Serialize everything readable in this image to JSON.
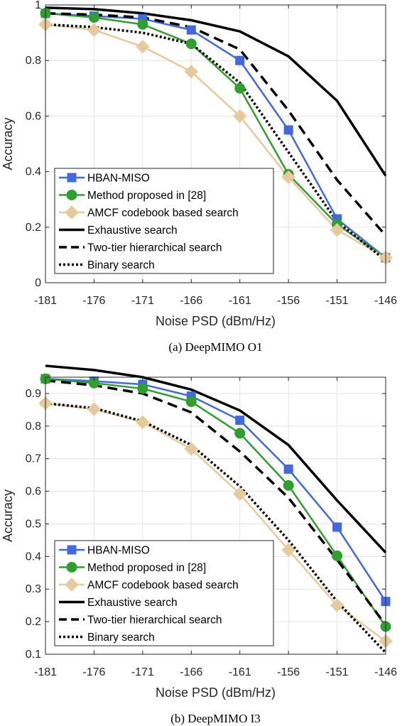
{
  "legend_labels": [
    "HBAN-MISO",
    "Method proposed in [28]",
    "AMCF codebook based search",
    "Exhaustive search",
    "Two-tier hierarchical search",
    "Binary search"
  ],
  "series_styles": [
    {
      "color": "#4169e1",
      "dash": "none",
      "marker": "square"
    },
    {
      "color": "#2ea02e",
      "dash": "none",
      "marker": "circle"
    },
    {
      "color": "#e8c99a",
      "dash": "none",
      "marker": "diamond"
    },
    {
      "color": "#000000",
      "dash": "none",
      "marker": "none"
    },
    {
      "color": "#000000",
      "dash": "dashed",
      "marker": "none"
    },
    {
      "color": "#000000",
      "dash": "dotted",
      "marker": "none"
    }
  ],
  "chart_data": [
    {
      "type": "line",
      "caption": "(a)  DeepMIMO O1",
      "xlabel": "Noise PSD (dBm/Hz)",
      "ylabel": "Accuracy",
      "x": [
        -181,
        -176,
        -171,
        -166,
        -161,
        -156,
        -151,
        -146
      ],
      "xtick_labels": [
        "-181",
        "-176",
        "-171",
        "-166",
        "-161",
        "-156",
        "-151",
        "-146"
      ],
      "ylim": [
        0,
        1
      ],
      "yticks": [
        0,
        0.2,
        0.4,
        0.6,
        0.8,
        1
      ],
      "ytick_labels": [
        "0",
        "0.2",
        "0.4",
        "0.6",
        "0.8",
        "1"
      ],
      "grid": true,
      "legend_position": "lower-left",
      "series": [
        {
          "name": "HBAN-MISO",
          "values": [
            0.97,
            0.96,
            0.95,
            0.91,
            0.8,
            0.55,
            0.23,
            0.09
          ]
        },
        {
          "name": "Method proposed in [28]",
          "values": [
            0.97,
            0.955,
            0.93,
            0.86,
            0.7,
            0.39,
            0.21,
            0.09
          ]
        },
        {
          "name": "AMCF codebook based search",
          "values": [
            0.93,
            0.91,
            0.85,
            0.76,
            0.6,
            0.38,
            0.19,
            0.09
          ]
        },
        {
          "name": "Exhaustive search",
          "values": [
            0.99,
            0.985,
            0.97,
            0.945,
            0.905,
            0.815,
            0.655,
            0.385
          ]
        },
        {
          "name": "Two-tier hierarchical search",
          "values": [
            0.97,
            0.965,
            0.955,
            0.92,
            0.84,
            0.62,
            0.37,
            0.17
          ]
        },
        {
          "name": "Binary search",
          "values": [
            0.93,
            0.92,
            0.9,
            0.86,
            0.72,
            0.47,
            0.22,
            0.08
          ]
        }
      ]
    },
    {
      "type": "line",
      "caption": "(b)  DeepMIMO I3",
      "xlabel": "Noise PSD (dBm/Hz)",
      "ylabel": "Accuracy",
      "x": [
        -181,
        -176,
        -171,
        -166,
        -161,
        -156,
        -151,
        -146
      ],
      "xtick_labels": [
        "-181",
        "-176",
        "-171",
        "-166",
        "-161",
        "-156",
        "-151",
        "-146"
      ],
      "ylim": [
        0.1,
        0.95
      ],
      "yticks": [
        0.1,
        0.2,
        0.3,
        0.4,
        0.5,
        0.6,
        0.7,
        0.8,
        0.9
      ],
      "ytick_labels": [
        "0.1",
        "0.2",
        "0.3",
        "0.4",
        "0.5",
        "0.6",
        "0.7",
        "0.8",
        "0.9"
      ],
      "grid": true,
      "legend_position": "lower-left",
      "series": [
        {
          "name": "HBAN-MISO",
          "values": [
            0.945,
            0.938,
            0.928,
            0.892,
            0.818,
            0.668,
            0.49,
            0.262
          ]
        },
        {
          "name": "Method proposed in [28]",
          "values": [
            0.945,
            0.932,
            0.915,
            0.875,
            0.778,
            0.618,
            0.402,
            0.185
          ]
        },
        {
          "name": "AMCF codebook based search",
          "values": [
            0.87,
            0.852,
            0.812,
            0.73,
            0.592,
            0.42,
            0.25,
            0.14
          ]
        },
        {
          "name": "Exhaustive search",
          "values": [
            0.985,
            0.972,
            0.95,
            0.912,
            0.848,
            0.742,
            0.572,
            0.412
          ]
        },
        {
          "name": "Two-tier hierarchical search",
          "values": [
            0.94,
            0.925,
            0.9,
            0.842,
            0.722,
            0.58,
            0.39,
            0.19
          ]
        },
        {
          "name": "Binary search",
          "values": [
            0.87,
            0.855,
            0.815,
            0.742,
            0.615,
            0.45,
            0.262,
            0.105
          ]
        }
      ]
    }
  ]
}
